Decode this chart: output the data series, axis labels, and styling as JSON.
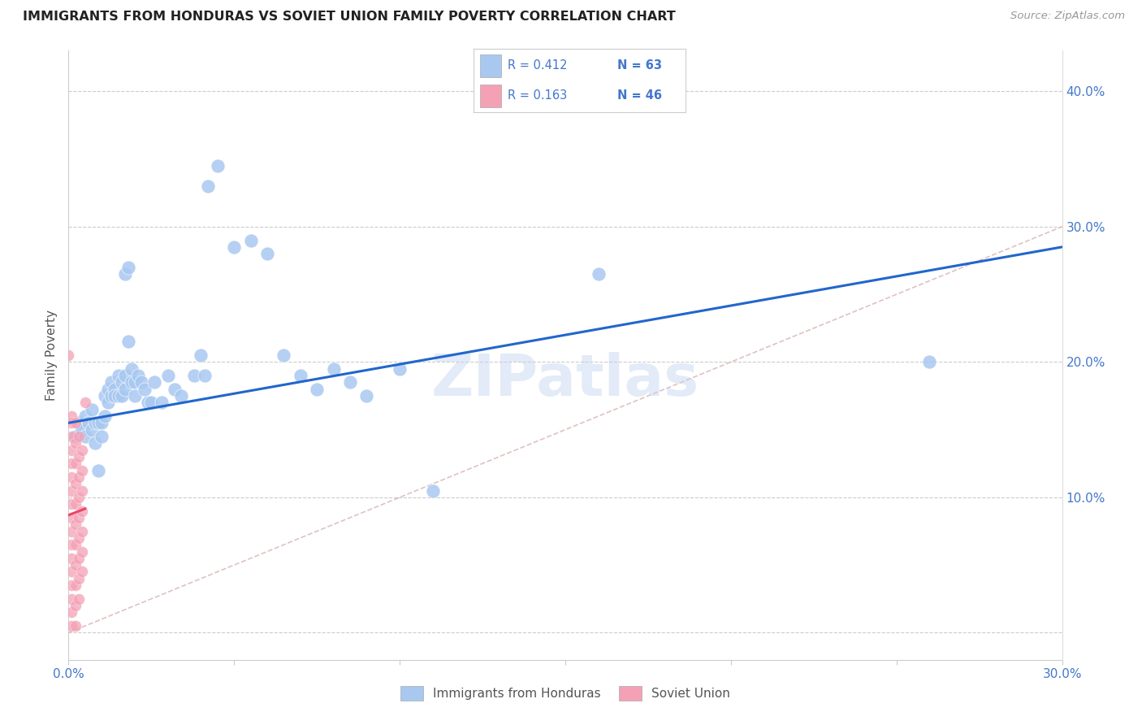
{
  "title": "IMMIGRANTS FROM HONDURAS VS SOVIET UNION FAMILY POVERTY CORRELATION CHART",
  "source": "Source: ZipAtlas.com",
  "ylabel": "Family Poverty",
  "xlim": [
    0.0,
    0.3
  ],
  "ylim": [
    -0.02,
    0.43
  ],
  "xtick_positions": [
    0.0,
    0.05,
    0.1,
    0.15,
    0.2,
    0.25,
    0.3
  ],
  "xtick_labels": [
    "0.0%",
    "",
    "",
    "",
    "",
    "",
    "30.0%"
  ],
  "ytick_positions": [
    0.0,
    0.1,
    0.2,
    0.3,
    0.4
  ],
  "ytick_labels_right": [
    "",
    "10.0%",
    "20.0%",
    "30.0%",
    "40.0%"
  ],
  "legend_r1": "R = 0.412",
  "legend_n1": "N = 63",
  "legend_r2": "R = 0.163",
  "legend_n2": "N = 46",
  "honduras_color": "#A8C8F0",
  "soviet_color": "#F4A0B5",
  "honduras_line_color": "#2266CC",
  "soviet_line_color": "#EE4466",
  "diagonal_color": "#DDBBBB",
  "watermark": "ZIPatlas",
  "title_color": "#222222",
  "axis_label_color": "#4477CC",
  "honduras_scatter": [
    [
      0.002,
      0.145
    ],
    [
      0.003,
      0.155
    ],
    [
      0.004,
      0.15
    ],
    [
      0.005,
      0.145
    ],
    [
      0.005,
      0.16
    ],
    [
      0.006,
      0.155
    ],
    [
      0.007,
      0.15
    ],
    [
      0.007,
      0.165
    ],
    [
      0.008,
      0.155
    ],
    [
      0.008,
      0.14
    ],
    [
      0.009,
      0.155
    ],
    [
      0.009,
      0.12
    ],
    [
      0.01,
      0.155
    ],
    [
      0.01,
      0.145
    ],
    [
      0.011,
      0.175
    ],
    [
      0.011,
      0.16
    ],
    [
      0.012,
      0.18
    ],
    [
      0.012,
      0.17
    ],
    [
      0.013,
      0.175
    ],
    [
      0.013,
      0.185
    ],
    [
      0.014,
      0.18
    ],
    [
      0.014,
      0.175
    ],
    [
      0.015,
      0.19
    ],
    [
      0.015,
      0.175
    ],
    [
      0.016,
      0.185
    ],
    [
      0.016,
      0.175
    ],
    [
      0.017,
      0.18
    ],
    [
      0.017,
      0.19
    ],
    [
      0.017,
      0.265
    ],
    [
      0.018,
      0.27
    ],
    [
      0.018,
      0.215
    ],
    [
      0.019,
      0.195
    ],
    [
      0.019,
      0.185
    ],
    [
      0.02,
      0.185
    ],
    [
      0.02,
      0.175
    ],
    [
      0.021,
      0.19
    ],
    [
      0.022,
      0.185
    ],
    [
      0.023,
      0.18
    ],
    [
      0.024,
      0.17
    ],
    [
      0.025,
      0.17
    ],
    [
      0.026,
      0.185
    ],
    [
      0.028,
      0.17
    ],
    [
      0.03,
      0.19
    ],
    [
      0.032,
      0.18
    ],
    [
      0.034,
      0.175
    ],
    [
      0.038,
      0.19
    ],
    [
      0.04,
      0.205
    ],
    [
      0.041,
      0.19
    ],
    [
      0.042,
      0.33
    ],
    [
      0.045,
      0.345
    ],
    [
      0.05,
      0.285
    ],
    [
      0.055,
      0.29
    ],
    [
      0.06,
      0.28
    ],
    [
      0.065,
      0.205
    ],
    [
      0.07,
      0.19
    ],
    [
      0.075,
      0.18
    ],
    [
      0.08,
      0.195
    ],
    [
      0.085,
      0.185
    ],
    [
      0.09,
      0.175
    ],
    [
      0.1,
      0.195
    ],
    [
      0.11,
      0.105
    ],
    [
      0.16,
      0.265
    ],
    [
      0.26,
      0.2
    ]
  ],
  "soviet_scatter": [
    [
      0.0,
      0.205
    ],
    [
      0.001,
      0.16
    ],
    [
      0.001,
      0.155
    ],
    [
      0.001,
      0.145
    ],
    [
      0.001,
      0.135
    ],
    [
      0.001,
      0.125
    ],
    [
      0.001,
      0.115
    ],
    [
      0.001,
      0.105
    ],
    [
      0.001,
      0.095
    ],
    [
      0.001,
      0.085
    ],
    [
      0.001,
      0.075
    ],
    [
      0.001,
      0.065
    ],
    [
      0.001,
      0.055
    ],
    [
      0.001,
      0.045
    ],
    [
      0.001,
      0.035
    ],
    [
      0.001,
      0.025
    ],
    [
      0.001,
      0.015
    ],
    [
      0.001,
      0.005
    ],
    [
      0.002,
      0.155
    ],
    [
      0.002,
      0.14
    ],
    [
      0.002,
      0.125
    ],
    [
      0.002,
      0.11
    ],
    [
      0.002,
      0.095
    ],
    [
      0.002,
      0.08
    ],
    [
      0.002,
      0.065
    ],
    [
      0.002,
      0.05
    ],
    [
      0.002,
      0.035
    ],
    [
      0.002,
      0.02
    ],
    [
      0.002,
      0.005
    ],
    [
      0.003,
      0.145
    ],
    [
      0.003,
      0.13
    ],
    [
      0.003,
      0.115
    ],
    [
      0.003,
      0.1
    ],
    [
      0.003,
      0.085
    ],
    [
      0.003,
      0.07
    ],
    [
      0.003,
      0.055
    ],
    [
      0.003,
      0.04
    ],
    [
      0.003,
      0.025
    ],
    [
      0.004,
      0.135
    ],
    [
      0.004,
      0.12
    ],
    [
      0.004,
      0.105
    ],
    [
      0.004,
      0.09
    ],
    [
      0.004,
      0.075
    ],
    [
      0.004,
      0.06
    ],
    [
      0.004,
      0.045
    ],
    [
      0.005,
      0.17
    ]
  ]
}
